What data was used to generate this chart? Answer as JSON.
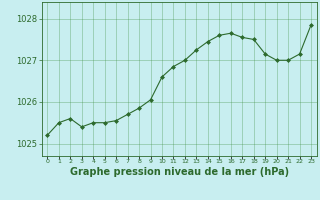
{
  "hours": [
    0,
    1,
    2,
    3,
    4,
    5,
    6,
    7,
    8,
    9,
    10,
    11,
    12,
    13,
    14,
    15,
    16,
    17,
    18,
    19,
    20,
    21,
    22,
    23
  ],
  "pressure": [
    1025.2,
    1025.5,
    1025.6,
    1025.4,
    1025.5,
    1025.5,
    1025.55,
    1025.7,
    1025.85,
    1026.05,
    1026.6,
    1026.85,
    1027.0,
    1027.25,
    1027.45,
    1027.6,
    1027.65,
    1027.55,
    1027.5,
    1027.15,
    1027.0,
    1027.0,
    1027.15,
    1027.85
  ],
  "line_color": "#2d6a2d",
  "marker_color": "#2d6a2d",
  "bg_color": "#c8eef0",
  "grid_color": "#3d8c3d",
  "xlabel": "Graphe pression niveau de la mer (hPa)",
  "xlabel_fontsize": 7,
  "yticks": [
    1025,
    1026,
    1027,
    1028
  ],
  "ylim": [
    1024.7,
    1028.4
  ],
  "xlim": [
    -0.5,
    23.5
  ],
  "title": ""
}
